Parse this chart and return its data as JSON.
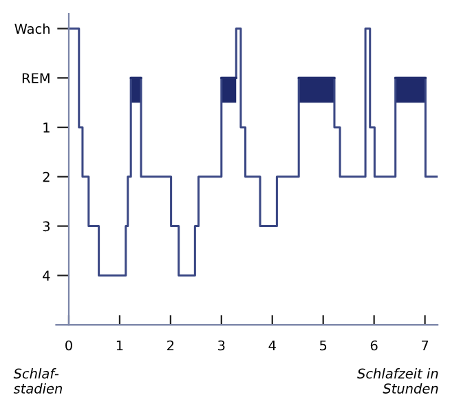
{
  "chart_data": {
    "type": "step",
    "xlabel": "Schlafzeit in\nStunden",
    "ylabel": "Schlaf-\nstadien",
    "xlim": [
      -0.25,
      7.25
    ],
    "ylim": [
      5,
      -1.3
    ],
    "xticks": [
      0,
      1,
      2,
      3,
      4,
      5,
      6,
      7
    ],
    "yticks": [
      4,
      3,
      2,
      1,
      {
        "value": 0,
        "label": "REM"
      },
      {
        "value": -1,
        "label": "Wach"
      }
    ],
    "grid": false,
    "legend": false,
    "series": [
      {
        "color": "#3b4885",
        "x": [
          0,
          0.2,
          0.27,
          0.39,
          0.59,
          1.12,
          1.16,
          1.22,
          1.42,
          2.01,
          2.16,
          2.48,
          2.55,
          3.0,
          3.29,
          3.38,
          3.47,
          3.76,
          4.09,
          4.52,
          5.22,
          5.33,
          5.83,
          5.92,
          6.01,
          6.42,
          7.01,
          7.25
        ],
        "values": [
          -1,
          1,
          2,
          3,
          4,
          3,
          2,
          0,
          2,
          3,
          4,
          3,
          2,
          0,
          -1,
          1,
          2,
          3,
          2,
          0,
          1,
          2,
          -1,
          1,
          2,
          0,
          2,
          2
        ]
      },
      {
        "type": "line",
        "color": "#1f2a6b",
        "x": [
          1.22,
          1.42,
          2,
          3.0,
          3.29,
          4,
          4.52,
          5.22,
          6,
          6.42,
          7.01
        ],
        "values": [
          0,
          0,
          null,
          0,
          0,
          null,
          0,
          0,
          null,
          0,
          0
        ],
        "lower": [
          0.5,
          0.5,
          null,
          0.5,
          0.5,
          null,
          0.5,
          0.5,
          null,
          0.5,
          0.5
        ],
        "upper": [
          0,
          0,
          null,
          0,
          0,
          null,
          0,
          0,
          null,
          0,
          0
        ]
      }
    ]
  }
}
